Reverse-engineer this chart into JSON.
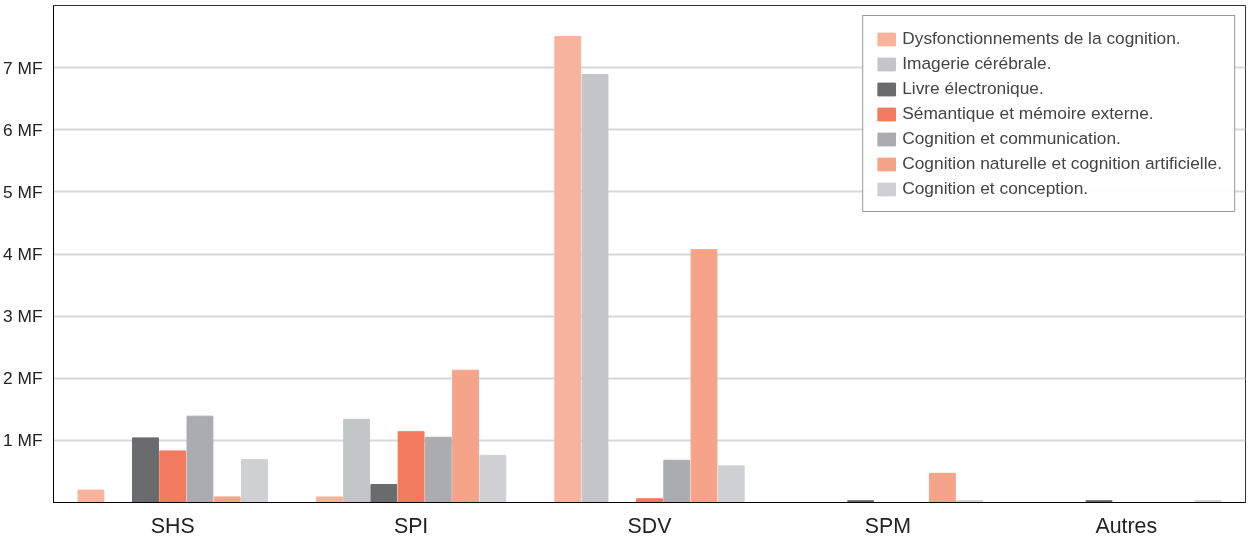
{
  "chart_data": {
    "type": "bar",
    "categories": [
      "SHS",
      "SPI",
      "SDV",
      "SPM",
      "Autres"
    ],
    "ylim": [
      0,
      8
    ],
    "yticks": [
      {
        "value": 1,
        "label": "1 MF"
      },
      {
        "value": 2,
        "label": "2 MF"
      },
      {
        "value": 3,
        "label": "3 MF"
      },
      {
        "value": 4,
        "label": "4 MF"
      },
      {
        "value": 5,
        "label": "5 MF"
      },
      {
        "value": 6,
        "label": "6 MF"
      },
      {
        "value": 7,
        "label": "7 MF"
      }
    ],
    "grid": "y",
    "legend": "top right",
    "series": [
      {
        "name": "Dysfonctionnements de la cognition.",
        "color": "#f8b39c",
        "values": [
          0.2,
          0.09,
          7.5,
          null,
          null
        ]
      },
      {
        "name": "Imagerie cérébrale.",
        "color": "#c4c5c7",
        "values": [
          null,
          1.34,
          6.89,
          null,
          null
        ]
      },
      {
        "name": "Livre électronique.",
        "color": "#6a6b6d",
        "values": [
          1.04,
          0.29,
          null,
          0.03,
          0.03
        ]
      },
      {
        "name": "Sémantique et mémoire externe.",
        "color": "#f27a5f",
        "values": [
          0.83,
          1.14,
          0.06,
          null,
          null
        ]
      },
      {
        "name": "Cognition et communication.",
        "color": "#abacaf",
        "values": [
          1.39,
          1.05,
          0.68,
          null,
          null
        ]
      },
      {
        "name": "Cognition naturelle et cognition artificielle.",
        "color": "#f6a489",
        "values": [
          0.09,
          2.13,
          4.07,
          0.47,
          null
        ]
      },
      {
        "name": "Cognition et conception.",
        "color": "#cfd0d2",
        "values": [
          0.69,
          0.76,
          0.59,
          0.03,
          0.03
        ]
      }
    ]
  }
}
